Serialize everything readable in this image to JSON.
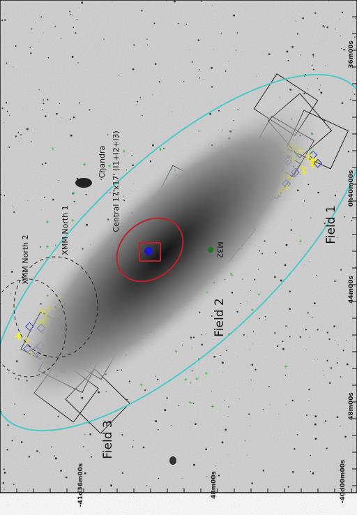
{
  "axes": {
    "right_ticks": [
      "36m00s",
      "0h40m00s",
      "44m00s",
      "48m00s"
    ],
    "bottom_ticks": [
      "-41d36m00s",
      "48m00s",
      "-40d00m00s"
    ]
  },
  "labels": {
    "field1": "Field 1",
    "field2": "Field 2",
    "field3": "Field 3",
    "chandra": "Chandra",
    "central": "Central 17'x17' (I1+I2+I3)",
    "xmm1": "XMM North 1",
    "xmm2": "XMM North 2",
    "m32": "M32"
  }
}
